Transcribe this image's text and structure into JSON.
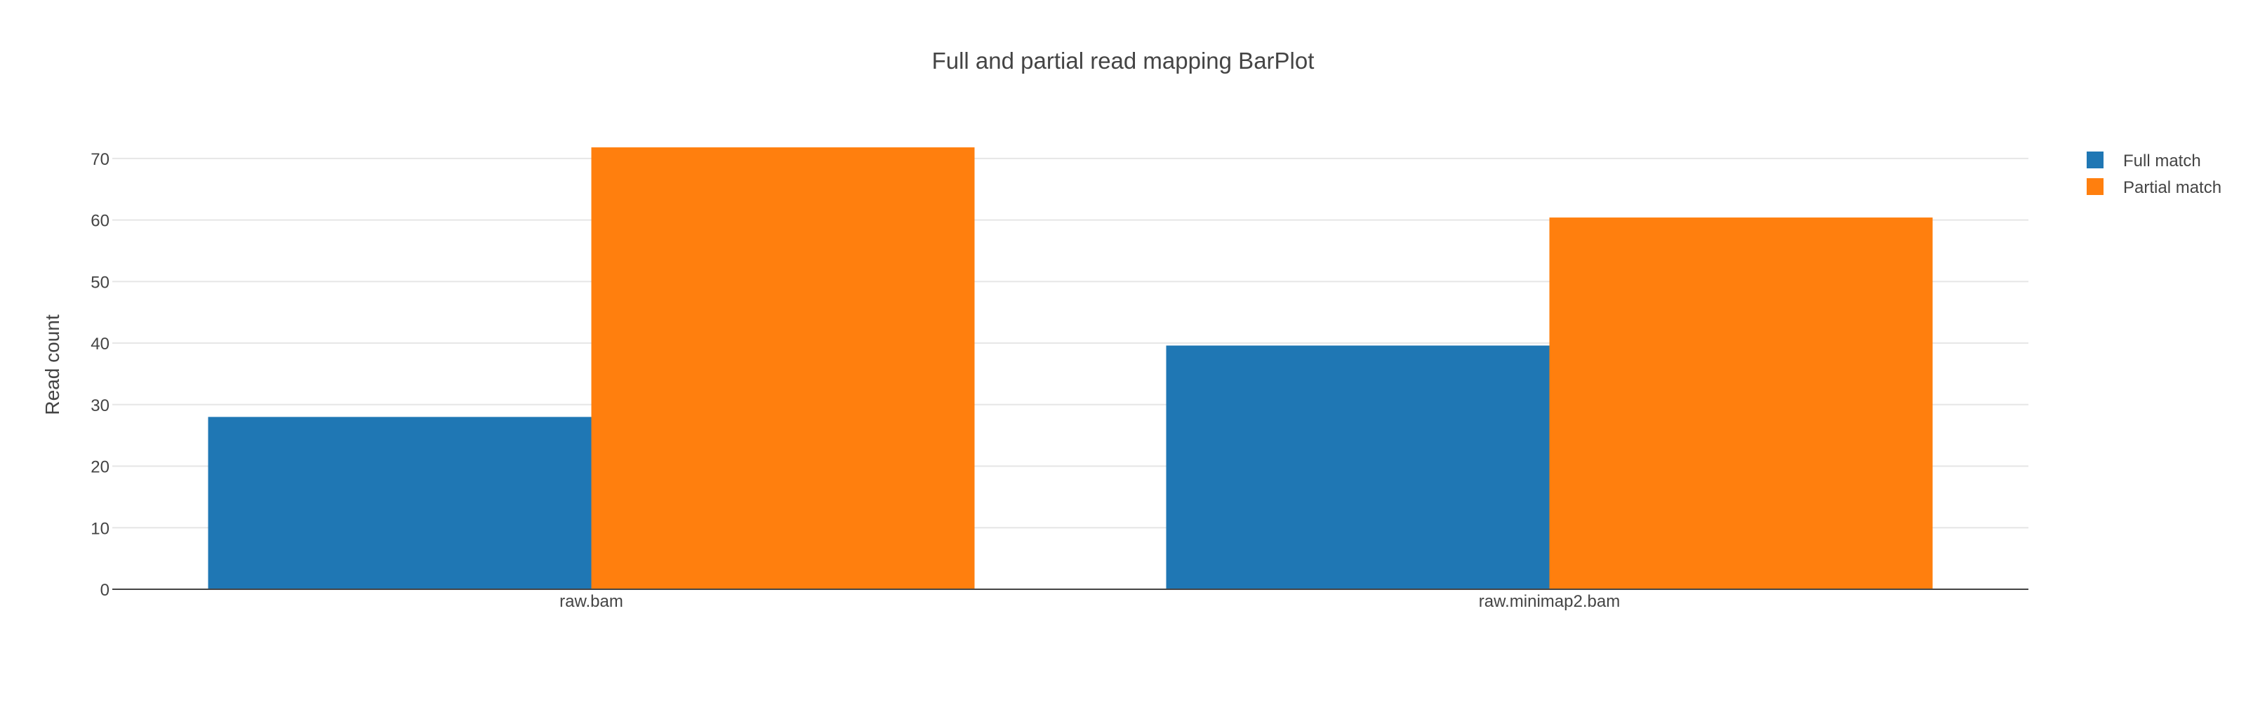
{
  "chart_data": {
    "type": "bar",
    "title": "Full and partial read mapping BarPlot",
    "xlabel": "",
    "ylabel": "Read count",
    "categories": [
      "raw.bam",
      "raw.minimap2.bam"
    ],
    "series": [
      {
        "name": "Full match",
        "color": "#1f77b4",
        "values": [
          28,
          39.6
        ]
      },
      {
        "name": "Partial match",
        "color": "#ff7f0e",
        "values": [
          71.8,
          60.4
        ]
      }
    ],
    "ylim": [
      0,
      75
    ],
    "yticks": [
      0,
      10,
      20,
      30,
      40,
      50,
      60,
      70
    ],
    "grid": true,
    "legend_position": "top-right",
    "barmode": "group"
  }
}
